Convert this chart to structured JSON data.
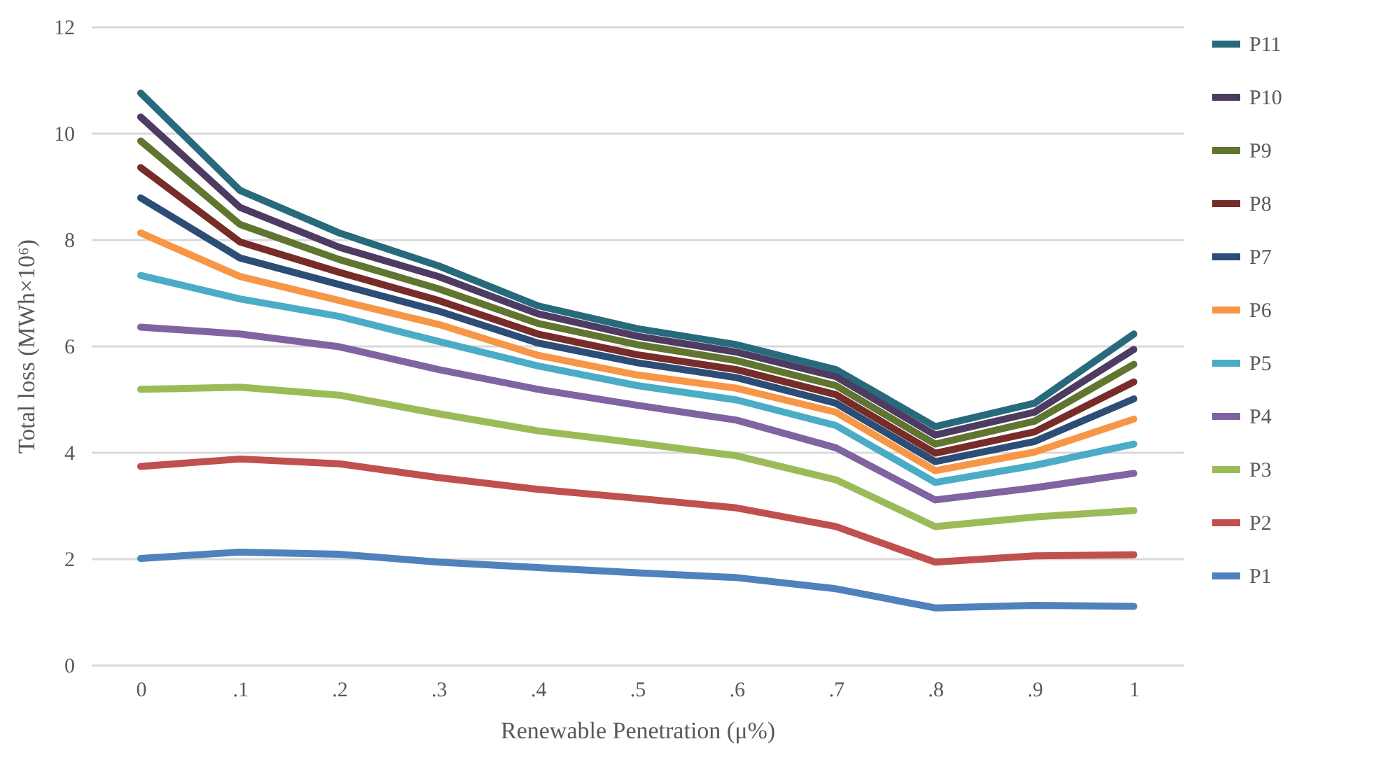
{
  "chart_data": {
    "type": "line",
    "xlabel": "Renewable Penetration (μ%)",
    "ylabel": "Total loss (MWh×10⁶)",
    "categories": [
      "0",
      ".1",
      ".2",
      ".3",
      ".4",
      ".5",
      ".6",
      ".7",
      ".8",
      ".9",
      "1"
    ],
    "ylim": [
      0,
      12
    ],
    "yticks": [
      0,
      2,
      4,
      6,
      8,
      10,
      12
    ],
    "grid": "y",
    "legend": "right",
    "marker": "none",
    "line_style": "solid",
    "series": [
      {
        "name": "P11",
        "color": "#276a7c",
        "values": [
          10.75,
          8.92,
          8.12,
          7.5,
          6.75,
          6.32,
          6.02,
          5.55,
          4.48,
          4.92,
          6.22
        ]
      },
      {
        "name": "P10",
        "color": "#4d3b62",
        "values": [
          10.3,
          8.6,
          7.85,
          7.3,
          6.6,
          6.18,
          5.88,
          5.42,
          4.32,
          4.75,
          5.93
        ]
      },
      {
        "name": "P9",
        "color": "#5f7530",
        "values": [
          9.85,
          8.28,
          7.62,
          7.07,
          6.42,
          6.02,
          5.72,
          5.25,
          4.15,
          4.58,
          5.65
        ]
      },
      {
        "name": "P8",
        "color": "#772c2a",
        "values": [
          9.35,
          7.95,
          7.38,
          6.85,
          6.22,
          5.83,
          5.55,
          5.08,
          3.98,
          4.38,
          5.32
        ]
      },
      {
        "name": "P7",
        "color": "#2c4d75",
        "values": [
          8.78,
          7.65,
          7.15,
          6.65,
          6.05,
          5.68,
          5.4,
          4.92,
          3.82,
          4.2,
          5.0
        ]
      },
      {
        "name": "P6",
        "color": "#f79646",
        "values": [
          8.12,
          7.3,
          6.85,
          6.4,
          5.82,
          5.45,
          5.2,
          4.75,
          3.65,
          4.0,
          4.62
        ]
      },
      {
        "name": "P5",
        "color": "#4bacc6",
        "values": [
          7.32,
          6.88,
          6.55,
          6.08,
          5.62,
          5.25,
          4.98,
          4.5,
          3.43,
          3.75,
          4.15
        ]
      },
      {
        "name": "P4",
        "color": "#8064a2",
        "values": [
          6.35,
          6.22,
          5.98,
          5.55,
          5.18,
          4.88,
          4.6,
          4.08,
          3.1,
          3.33,
          3.6
        ]
      },
      {
        "name": "P3",
        "color": "#9bbb59",
        "values": [
          5.18,
          5.22,
          5.07,
          4.72,
          4.4,
          4.17,
          3.93,
          3.48,
          2.6,
          2.78,
          2.9
        ]
      },
      {
        "name": "P2",
        "color": "#c0504d",
        "values": [
          3.73,
          3.87,
          3.78,
          3.52,
          3.3,
          3.13,
          2.95,
          2.6,
          1.93,
          2.05,
          2.07
        ]
      },
      {
        "name": "P1",
        "color": "#4f81bd",
        "values": [
          2.0,
          2.12,
          2.08,
          1.93,
          1.83,
          1.73,
          1.64,
          1.43,
          1.07,
          1.12,
          1.1
        ]
      }
    ]
  }
}
